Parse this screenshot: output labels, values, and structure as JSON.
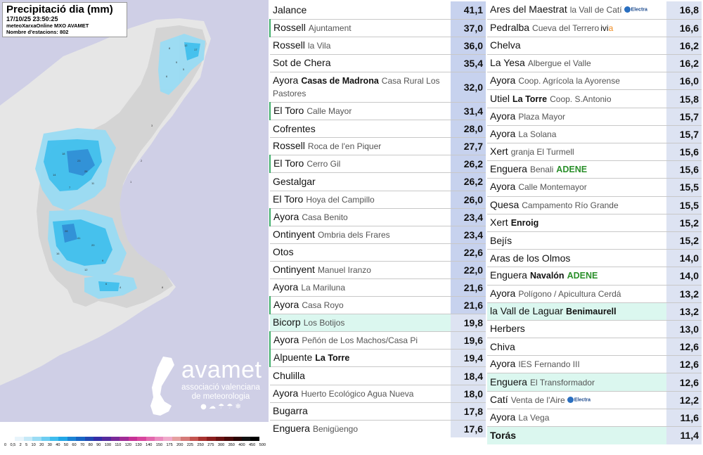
{
  "map": {
    "title": "Precipitació dia (mm)",
    "datetime": "17/10/25 23:50:25",
    "source": "meteoXarxaOnline MXO AVAMET",
    "stations_count": "Nombre d'estacions: 802",
    "logo": {
      "name": "avamet",
      "subtitle_line1": "associació valenciana",
      "subtitle_line2": "de meteorologia"
    },
    "colors": {
      "sea": "#cfcfe6",
      "land": "#e6e6e6",
      "rain_light": "#9adcf4",
      "rain_mid": "#3fc0ef",
      "rain_high": "#2a8fd8"
    }
  },
  "legend": {
    "labels": [
      "0",
      "0,5",
      "2",
      "5",
      "10",
      "20",
      "30",
      "40",
      "50",
      "60",
      "70",
      "80",
      "90",
      "100",
      "110",
      "120",
      "130",
      "140",
      "150",
      "175",
      "200",
      "225",
      "250",
      "275",
      "300",
      "350",
      "400",
      "450",
      "500"
    ],
    "colors": [
      "#ffffff",
      "#e8f4fb",
      "#c6e9f7",
      "#9adcf4",
      "#6ccdf2",
      "#3fbdee",
      "#22a7e6",
      "#1b83d4",
      "#1865c4",
      "#2248b2",
      "#352ea6",
      "#552a9c",
      "#7a2a98",
      "#a02c96",
      "#c63296",
      "#d8469e",
      "#e269ae",
      "#ea8bbf",
      "#f0aacb",
      "#e5a0a0",
      "#d57a78",
      "#c45450",
      "#a83330",
      "#8a1e1e",
      "#6a1212",
      "#4a0a0a",
      "#2a0505",
      "#111111",
      "#000000"
    ]
  },
  "stations_left": [
    {
      "name": "Jalance",
      "sub": "",
      "value": "41,1",
      "top": true
    },
    {
      "name": "Rossell",
      "sub": "Ajuntament",
      "value": "37,0",
      "top": true,
      "green_border": true
    },
    {
      "name": "Rossell",
      "sub": "la Vila",
      "value": "36,0",
      "top": true
    },
    {
      "name": "Sot de Chera",
      "sub": "",
      "value": "35,4",
      "top": true
    },
    {
      "name": "Ayora",
      "strong": "Casas de Madrona",
      "sub": "Casa Rural Los Pastores",
      "value": "32,0",
      "top": true,
      "tall": true
    },
    {
      "name": "El Toro",
      "sub": "Calle Mayor",
      "value": "31,4",
      "top": true,
      "green_border": true
    },
    {
      "name": "Cofrentes",
      "sub": "",
      "value": "28,0",
      "top": true
    },
    {
      "name": "Rossell",
      "sub": "Roca de l'en Piquer",
      "value": "27,7",
      "top": true
    },
    {
      "name": "El Toro",
      "sub": "Cerro Gil",
      "value": "26,2",
      "top": true,
      "green_border": true
    },
    {
      "name": "Gestalgar",
      "sub": "",
      "value": "26,2",
      "top": true
    },
    {
      "name": "El Toro",
      "sub": "Hoya del Campillo",
      "value": "26,0",
      "top": true
    },
    {
      "name": "Ayora",
      "sub": "Casa Benito",
      "value": "23,4",
      "top": true,
      "green_border": true
    },
    {
      "name": "Ontinyent",
      "sub": "Ombria dels Frares",
      "value": "23,4",
      "top": true
    },
    {
      "name": "Otos",
      "sub": "",
      "value": "22,6",
      "top": true
    },
    {
      "name": "Ontinyent",
      "sub": "Manuel Iranzo",
      "value": "22,0",
      "top": true
    },
    {
      "name": "Ayora",
      "sub": "La Mariluna",
      "value": "21,6",
      "top": true
    },
    {
      "name": "Ayora",
      "sub": "Casa Royo",
      "value": "21,6",
      "top": true,
      "green_border": true
    },
    {
      "name": "Bicorp",
      "sub": "Los Botijos",
      "value": "19,8",
      "highlight": true
    },
    {
      "name": "Ayora",
      "sub": "Peñón de Los Machos/Casa Pi",
      "value": "19,6",
      "green_border": true
    },
    {
      "name": "Alpuente",
      "strong": "La Torre",
      "sub": "",
      "value": "19,4",
      "green_border": true
    },
    {
      "name": "Chulilla",
      "sub": "",
      "value": "18,4"
    },
    {
      "name": "Ayora",
      "sub": "Huerto Ecológico Agua Nueva",
      "value": "18,0"
    },
    {
      "name": "Bugarra",
      "sub": "",
      "value": "17,8"
    },
    {
      "name": "Enguera",
      "sub": "Benigüengo",
      "value": "17,6"
    }
  ],
  "stations_right": [
    {
      "name": "Ares del Maestrat",
      "sub": "la Vall de Catí",
      "value": "16,8",
      "sponsor_badge": "Electra"
    },
    {
      "name": "Pedralba",
      "sub": "Cueva del Terrero",
      "value": "16,6",
      "sponsor": "ivia"
    },
    {
      "name": "Chelva",
      "sub": "",
      "value": "16,2"
    },
    {
      "name": "La Yesa",
      "sub": "Albergue el Valle",
      "value": "16,2"
    },
    {
      "name": "Ayora",
      "sub": "Coop. Agrícola la Ayorense",
      "value": "16,0"
    },
    {
      "name": "Utiel",
      "strong": "La Torre",
      "sub": "Coop. S.Antonio",
      "value": "15,8"
    },
    {
      "name": "Ayora",
      "sub": "Plaza Mayor",
      "value": "15,7"
    },
    {
      "name": "Ayora",
      "sub": "La Solana",
      "value": "15,7"
    },
    {
      "name": "Xert",
      "sub": "granja El Turmell",
      "value": "15,6"
    },
    {
      "name": "Enguera",
      "sub": "Benali",
      "adene": "ADENE",
      "value": "15,6"
    },
    {
      "name": "Ayora",
      "sub": "Calle Montemayor",
      "value": "15,5"
    },
    {
      "name": "Quesa",
      "sub": "Campamento Río Grande",
      "value": "15,5"
    },
    {
      "name": "Xert",
      "strong": "Enroig",
      "sub": "",
      "value": "15,2"
    },
    {
      "name": "Bejís",
      "sub": "",
      "value": "15,2"
    },
    {
      "name": "Aras de los Olmos",
      "sub": "",
      "value": "14,0"
    },
    {
      "name": "Enguera",
      "strong": "Navalón",
      "adene": "ADENE",
      "sub": "",
      "value": "14,0"
    },
    {
      "name": "Ayora",
      "sub": "Polígono / Apicultura Cerdá",
      "value": "13,2"
    },
    {
      "name": "la Vall de Laguar",
      "strong": "Benimaurell",
      "sub": "",
      "value": "13,2",
      "highlight": true
    },
    {
      "name": "Herbers",
      "sub": "",
      "value": "13,0"
    },
    {
      "name": "Chiva",
      "sub": "",
      "value": "12,6"
    },
    {
      "name": "Ayora",
      "sub": "IES Fernando III",
      "value": "12,6"
    },
    {
      "name": "Enguera",
      "sub": "El Transformador",
      "value": "12,6",
      "highlight": true
    },
    {
      "name": "Catí",
      "sub": "Venta de l'Aire",
      "value": "12,2",
      "sponsor_badge": "Electra"
    },
    {
      "name": "Ayora",
      "sub": "La Vega",
      "value": "11,6"
    },
    {
      "name": "Torás",
      "sub": "",
      "value": "11,4",
      "highlight": true,
      "bold_name": true
    }
  ]
}
